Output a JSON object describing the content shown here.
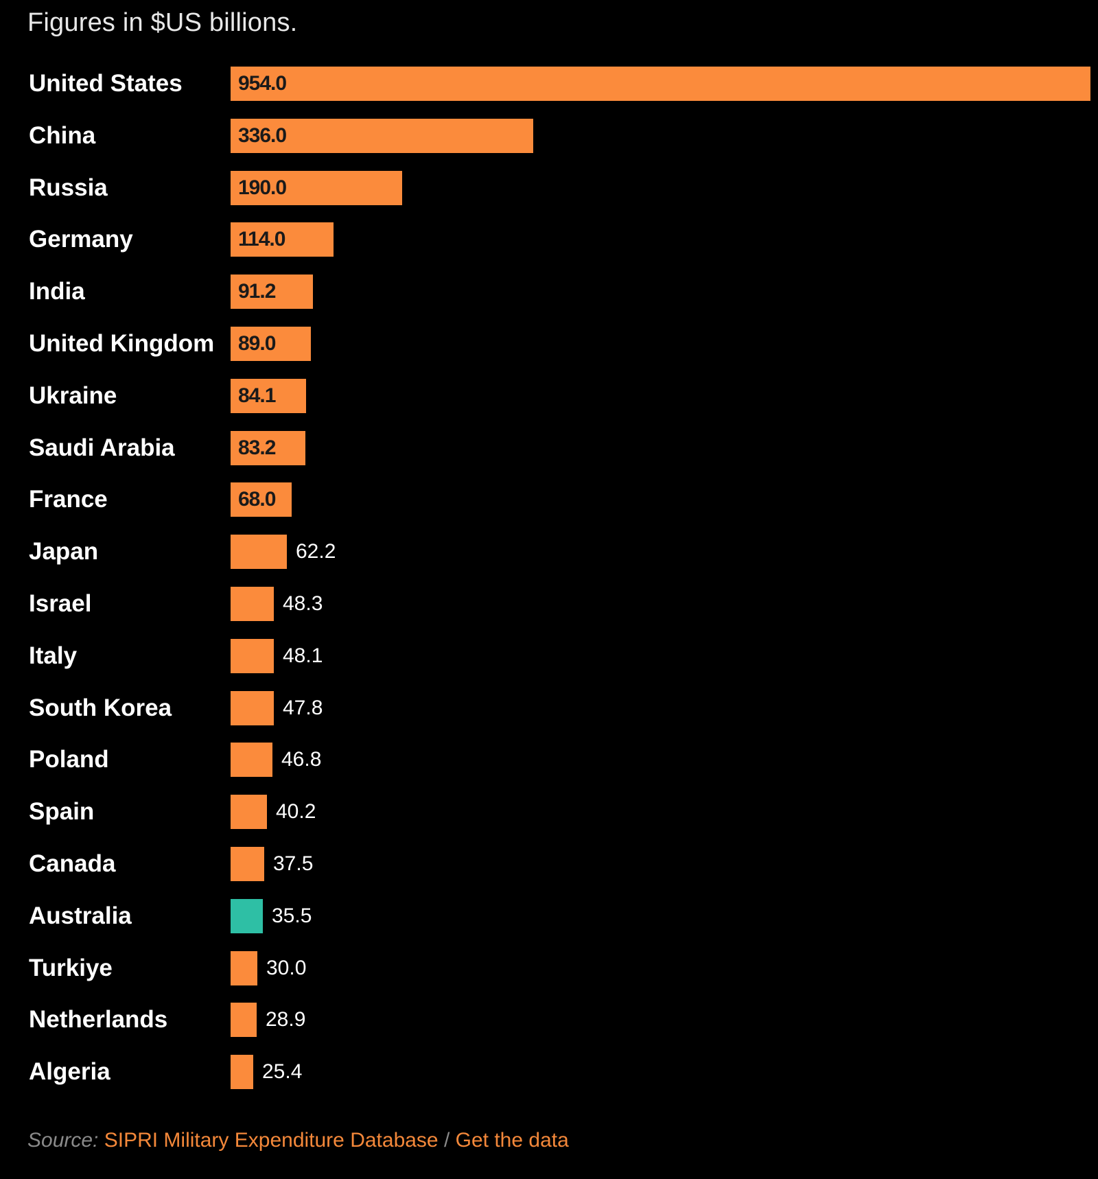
{
  "subtitle": "Figures in $US billions.",
  "colors": {
    "default_bar": "#fb8b3c",
    "highlight_bar": "#2ebfa5",
    "background": "#000000"
  },
  "chart_data": {
    "type": "bar",
    "orientation": "horizontal",
    "title": "",
    "subtitle": "Figures in $US billions.",
    "xlabel": "",
    "ylabel": "",
    "unit": "$US billions",
    "xlim": [
      0,
      954
    ],
    "grid": false,
    "highlight": "Australia",
    "categories": [
      "United States",
      "China",
      "Russia",
      "Germany",
      "India",
      "United Kingdom",
      "Ukraine",
      "Saudi Arabia",
      "France",
      "Japan",
      "Israel",
      "Italy",
      "South Korea",
      "Poland",
      "Spain",
      "Canada",
      "Australia",
      "Turkiye",
      "Netherlands",
      "Algeria"
    ],
    "values": [
      954.0,
      336.0,
      190.0,
      114.0,
      91.2,
      89.0,
      84.1,
      83.2,
      68.0,
      62.2,
      48.3,
      48.1,
      47.8,
      46.8,
      40.2,
      37.5,
      35.5,
      30.0,
      28.9,
      25.4
    ],
    "value_labels": [
      "954.0",
      "336.0",
      "190.0",
      "114.0",
      "91.2",
      "89.0",
      "84.1",
      "83.2",
      "68.0",
      "62.2",
      "48.3",
      "48.1",
      "47.8",
      "46.8",
      "40.2",
      "37.5",
      "35.5",
      "30.0",
      "28.9",
      "25.4"
    ]
  },
  "source": {
    "label": "Source:",
    "name": "SIPRI Military Expenditure Database",
    "separator": "/",
    "get_data": "Get the data"
  }
}
